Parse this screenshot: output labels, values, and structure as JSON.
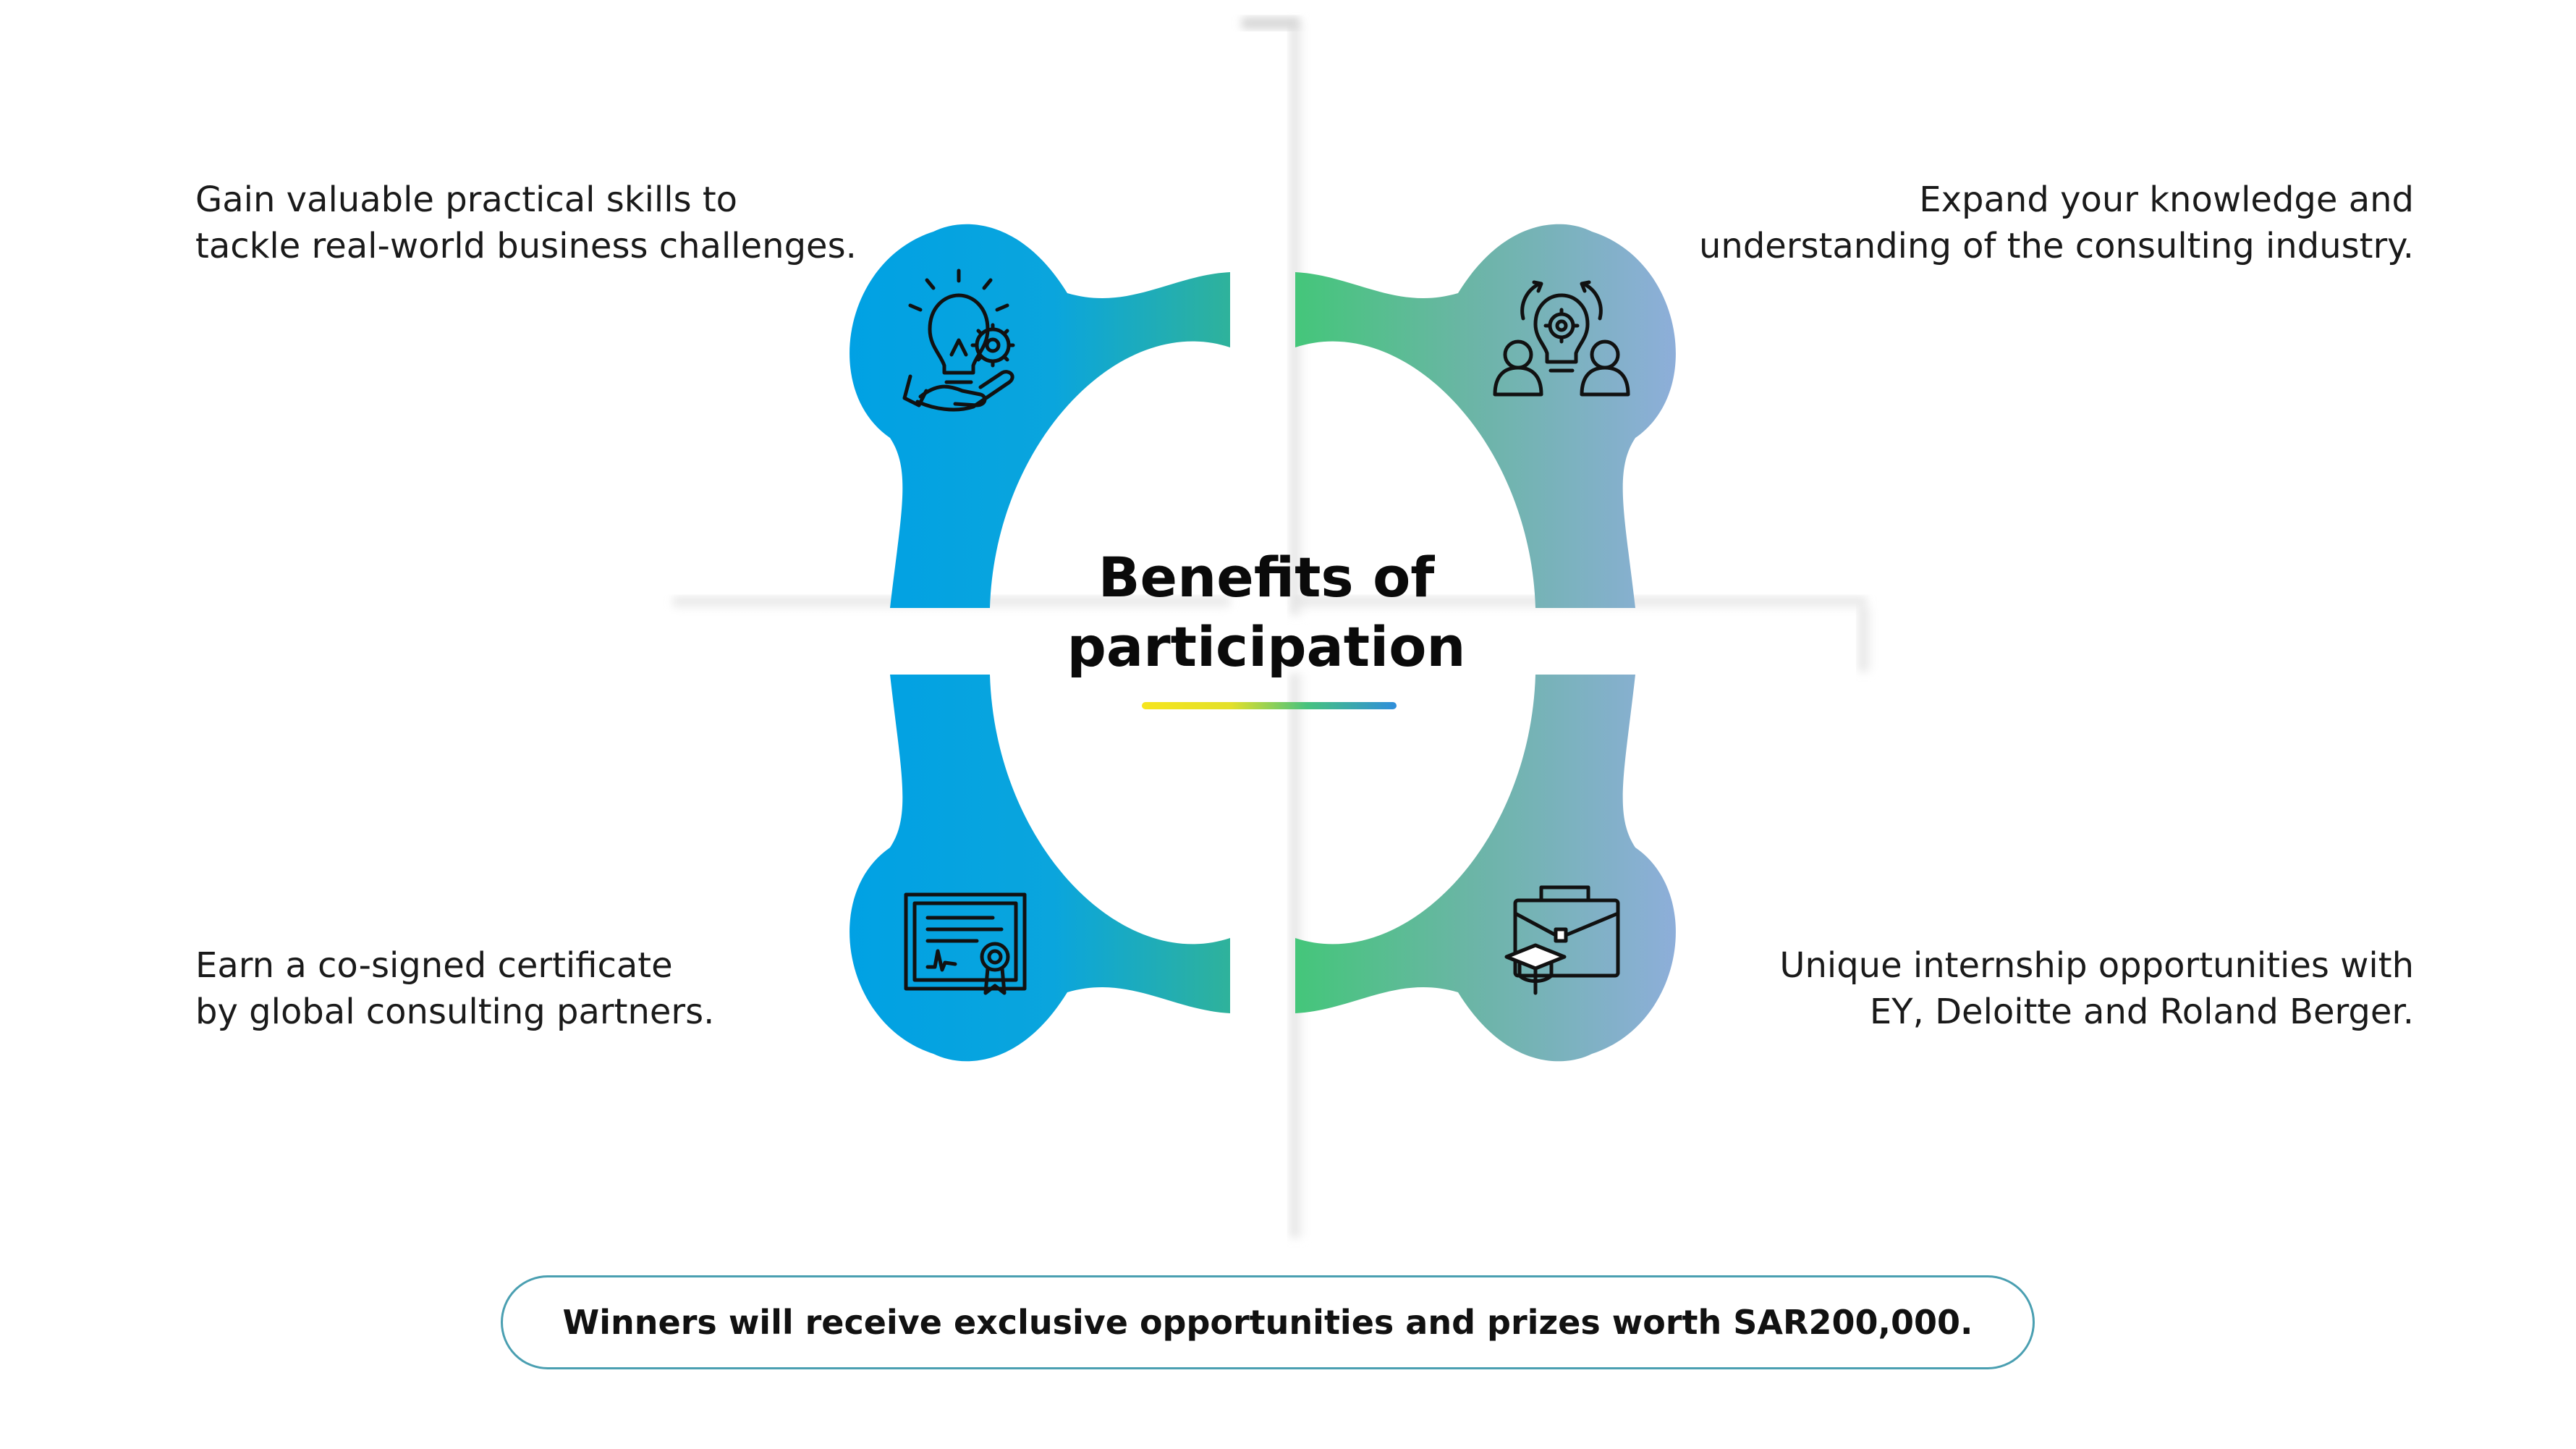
{
  "title": {
    "line1": "Benefits of",
    "line2": "participation"
  },
  "benefits": [
    {
      "id": "skills",
      "icon": "lightbulb-gear-hand-icon",
      "lines": [
        "Gain valuable practical skills to",
        "tackle real-world business challenges."
      ]
    },
    {
      "id": "knowledge",
      "icon": "people-lightbulb-gear-icon",
      "lines": [
        "Expand your knowledge and",
        "understanding of the consulting industry."
      ]
    },
    {
      "id": "certificate",
      "icon": "certificate-icon",
      "lines": [
        "Earn a co-signed certificate",
        "by global consulting partners."
      ]
    },
    {
      "id": "internship",
      "icon": "briefcase-graduation-cap-icon",
      "lines": [
        "Unique internship opportunities with",
        "EY, Deloitte and Roland Berger."
      ]
    }
  ],
  "banner": {
    "text": "Winners will receive exclusive opportunities and prizes worth SAR200,000."
  },
  "colors": {
    "blue": "#00A1E4",
    "teal": "#2FB29B",
    "green": "#44C67A",
    "lavender": "#8FAEDC",
    "yellow": "#F6E51D",
    "banner_border": "#4A9FB1"
  }
}
